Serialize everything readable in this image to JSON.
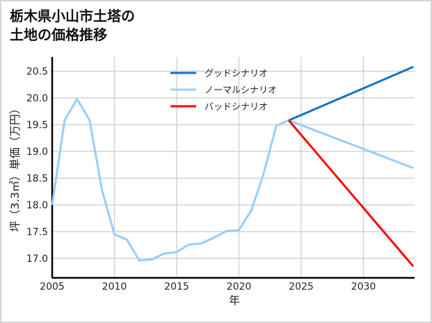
{
  "title": "栃木県小山市土塔の\n土地の価格推移",
  "chart_data": {
    "type": "line",
    "title": "栃木県小山市土塔の土地の価格推移",
    "xlabel": "年",
    "ylabel": "坪（3.3㎡）単価（万円）",
    "xlim": [
      2005,
      2034
    ],
    "ylim": [
      16.65,
      20.75
    ],
    "grid": true,
    "legend_position": "upper center",
    "xticks": [
      "2005",
      "2010",
      "2015",
      "2020",
      "2025",
      "2030"
    ],
    "yticks": [
      "17.0",
      "17.5",
      "18.0",
      "18.5",
      "19.0",
      "19.5",
      "20.0",
      "20.5"
    ],
    "series": [
      {
        "name": "グッドシナリオ",
        "color": "#0f72c6",
        "x": [
          2024,
          2034
        ],
        "values": [
          19.58,
          20.58
        ]
      },
      {
        "name": "ノーマルシナリオ",
        "color": "#99ccff",
        "x": [
          2005,
          2006,
          2007,
          2008,
          2009,
          2010,
          2011,
          2012,
          2013,
          2014,
          2015,
          2016,
          2017,
          2018,
          2019,
          2020,
          2021,
          2022,
          2023,
          2024,
          2034
        ],
        "values": [
          18.0,
          19.58,
          19.98,
          19.59,
          18.28,
          17.45,
          17.35,
          16.96,
          16.98,
          17.09,
          17.12,
          17.26,
          17.28,
          17.39,
          17.51,
          17.53,
          17.9,
          18.6,
          19.48,
          19.58,
          18.69
        ]
      },
      {
        "name": "バッドシナリオ",
        "color": "#ff0000",
        "x": [
          2024,
          2034
        ],
        "values": [
          19.58,
          16.85
        ]
      }
    ]
  }
}
